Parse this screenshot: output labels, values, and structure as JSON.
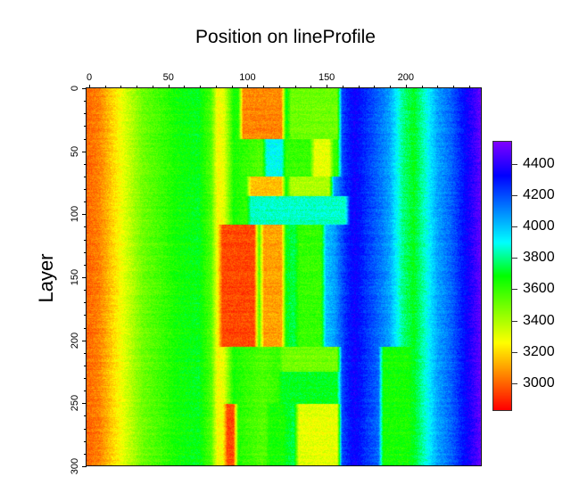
{
  "chart_data": {
    "type": "heatmap",
    "title": "Position on lineProfile",
    "xlabel": "",
    "ylabel": "Layer",
    "x_axis_position": "top",
    "xlim": [
      0,
      248
    ],
    "ylim": [
      300,
      0
    ],
    "x_ticks": [
      0,
      50,
      100,
      150,
      200
    ],
    "x_minor_step": 10,
    "y_ticks": [
      0,
      50,
      100,
      150,
      200,
      250,
      300
    ],
    "y_minor_step": 10,
    "colormap": "rainbow (red-yellow-green-cyan-blue-violet)",
    "colorbar": {
      "range": [
        2830,
        4540
      ],
      "ticks": [
        3000,
        3200,
        3400,
        3600,
        3800,
        4000,
        4200,
        4400
      ],
      "colors": [
        "#ff0000",
        "#ff8000",
        "#ffff00",
        "#80ff00",
        "#00ff00",
        "#00ffff",
        "#0080ff",
        "#0000ff",
        "#8000ff"
      ]
    },
    "column_profile_description": "Mean value by position (x) across layers; bands vary by layer",
    "base_profile": {
      "x": [
        0,
        8,
        20,
        35,
        55,
        70,
        78,
        82,
        86,
        92,
        100,
        110,
        120,
        125,
        135,
        145,
        155,
        162,
        168,
        175,
        183,
        190,
        198,
        205,
        212,
        220,
        228,
        236,
        242,
        248
      ],
      "values": [
        3000,
        3050,
        3250,
        3500,
        3650,
        3700,
        3550,
        3250,
        3300,
        3650,
        3600,
        3550,
        3600,
        3700,
        3800,
        3950,
        4050,
        4250,
        4350,
        4250,
        4150,
        4050,
        3800,
        3700,
        3850,
        4050,
        4150,
        4300,
        4400,
        4500
      ]
    },
    "layer_bands": [
      {
        "layers": [
          0,
          40
        ],
        "x_range": [
          95,
          125
        ],
        "value": 3050
      },
      {
        "layers": [
          0,
          40
        ],
        "x_range": [
          125,
          160
        ],
        "value": 3500
      },
      {
        "layers": [
          40,
          70
        ],
        "x_range": [
          110,
          160
        ],
        "value": 3600
      },
      {
        "layers": [
          40,
          70
        ],
        "x_range": [
          110,
          125
        ],
        "value": 3900
      },
      {
        "layers": [
          40,
          70
        ],
        "x_range": [
          140,
          155
        ],
        "value": 3300
      },
      {
        "layers": [
          70,
          85
        ],
        "x_range": [
          100,
          125
        ],
        "value": 3150
      },
      {
        "layers": [
          70,
          85
        ],
        "x_range": [
          125,
          155
        ],
        "value": 3400
      },
      {
        "layers": [
          85,
          108
        ],
        "x_range": [
          100,
          165
        ],
        "value": 3850
      },
      {
        "layers": [
          108,
          205
        ],
        "x_range": [
          82,
          108
        ],
        "value": 2950
      },
      {
        "layers": [
          108,
          205
        ],
        "x_range": [
          108,
          125
        ],
        "value": 3100
      },
      {
        "layers": [
          108,
          205
        ],
        "x_range": [
          130,
          150
        ],
        "value": 3600
      },
      {
        "layers": [
          205,
          225
        ],
        "x_range": [
          120,
          160
        ],
        "value": 3500
      },
      {
        "layers": [
          225,
          250
        ],
        "x_range": [
          120,
          160
        ],
        "value": 3700
      },
      {
        "layers": [
          205,
          300
        ],
        "x_range": [
          183,
          205
        ],
        "value": 3650
      },
      {
        "layers": [
          250,
          300
        ],
        "x_range": [
          85,
          95
        ],
        "value": 2950
      },
      {
        "layers": [
          250,
          300
        ],
        "x_range": [
          112,
          125
        ],
        "value": 3650
      },
      {
        "layers": [
          250,
          300
        ],
        "x_range": [
          130,
          160
        ],
        "value": 3300
      }
    ]
  },
  "header": {
    "title": "Position on lineProfile"
  },
  "axes": {
    "ylabel": "Layer",
    "x_tick_labels": [
      "0",
      "50",
      "100",
      "150",
      "200"
    ],
    "y_tick_labels": [
      "0",
      "50",
      "100",
      "150",
      "200",
      "250",
      "300"
    ],
    "colorbar_labels": [
      "4400",
      "4200",
      "4000",
      "3800",
      "3600",
      "3400",
      "3200",
      "3000"
    ]
  }
}
